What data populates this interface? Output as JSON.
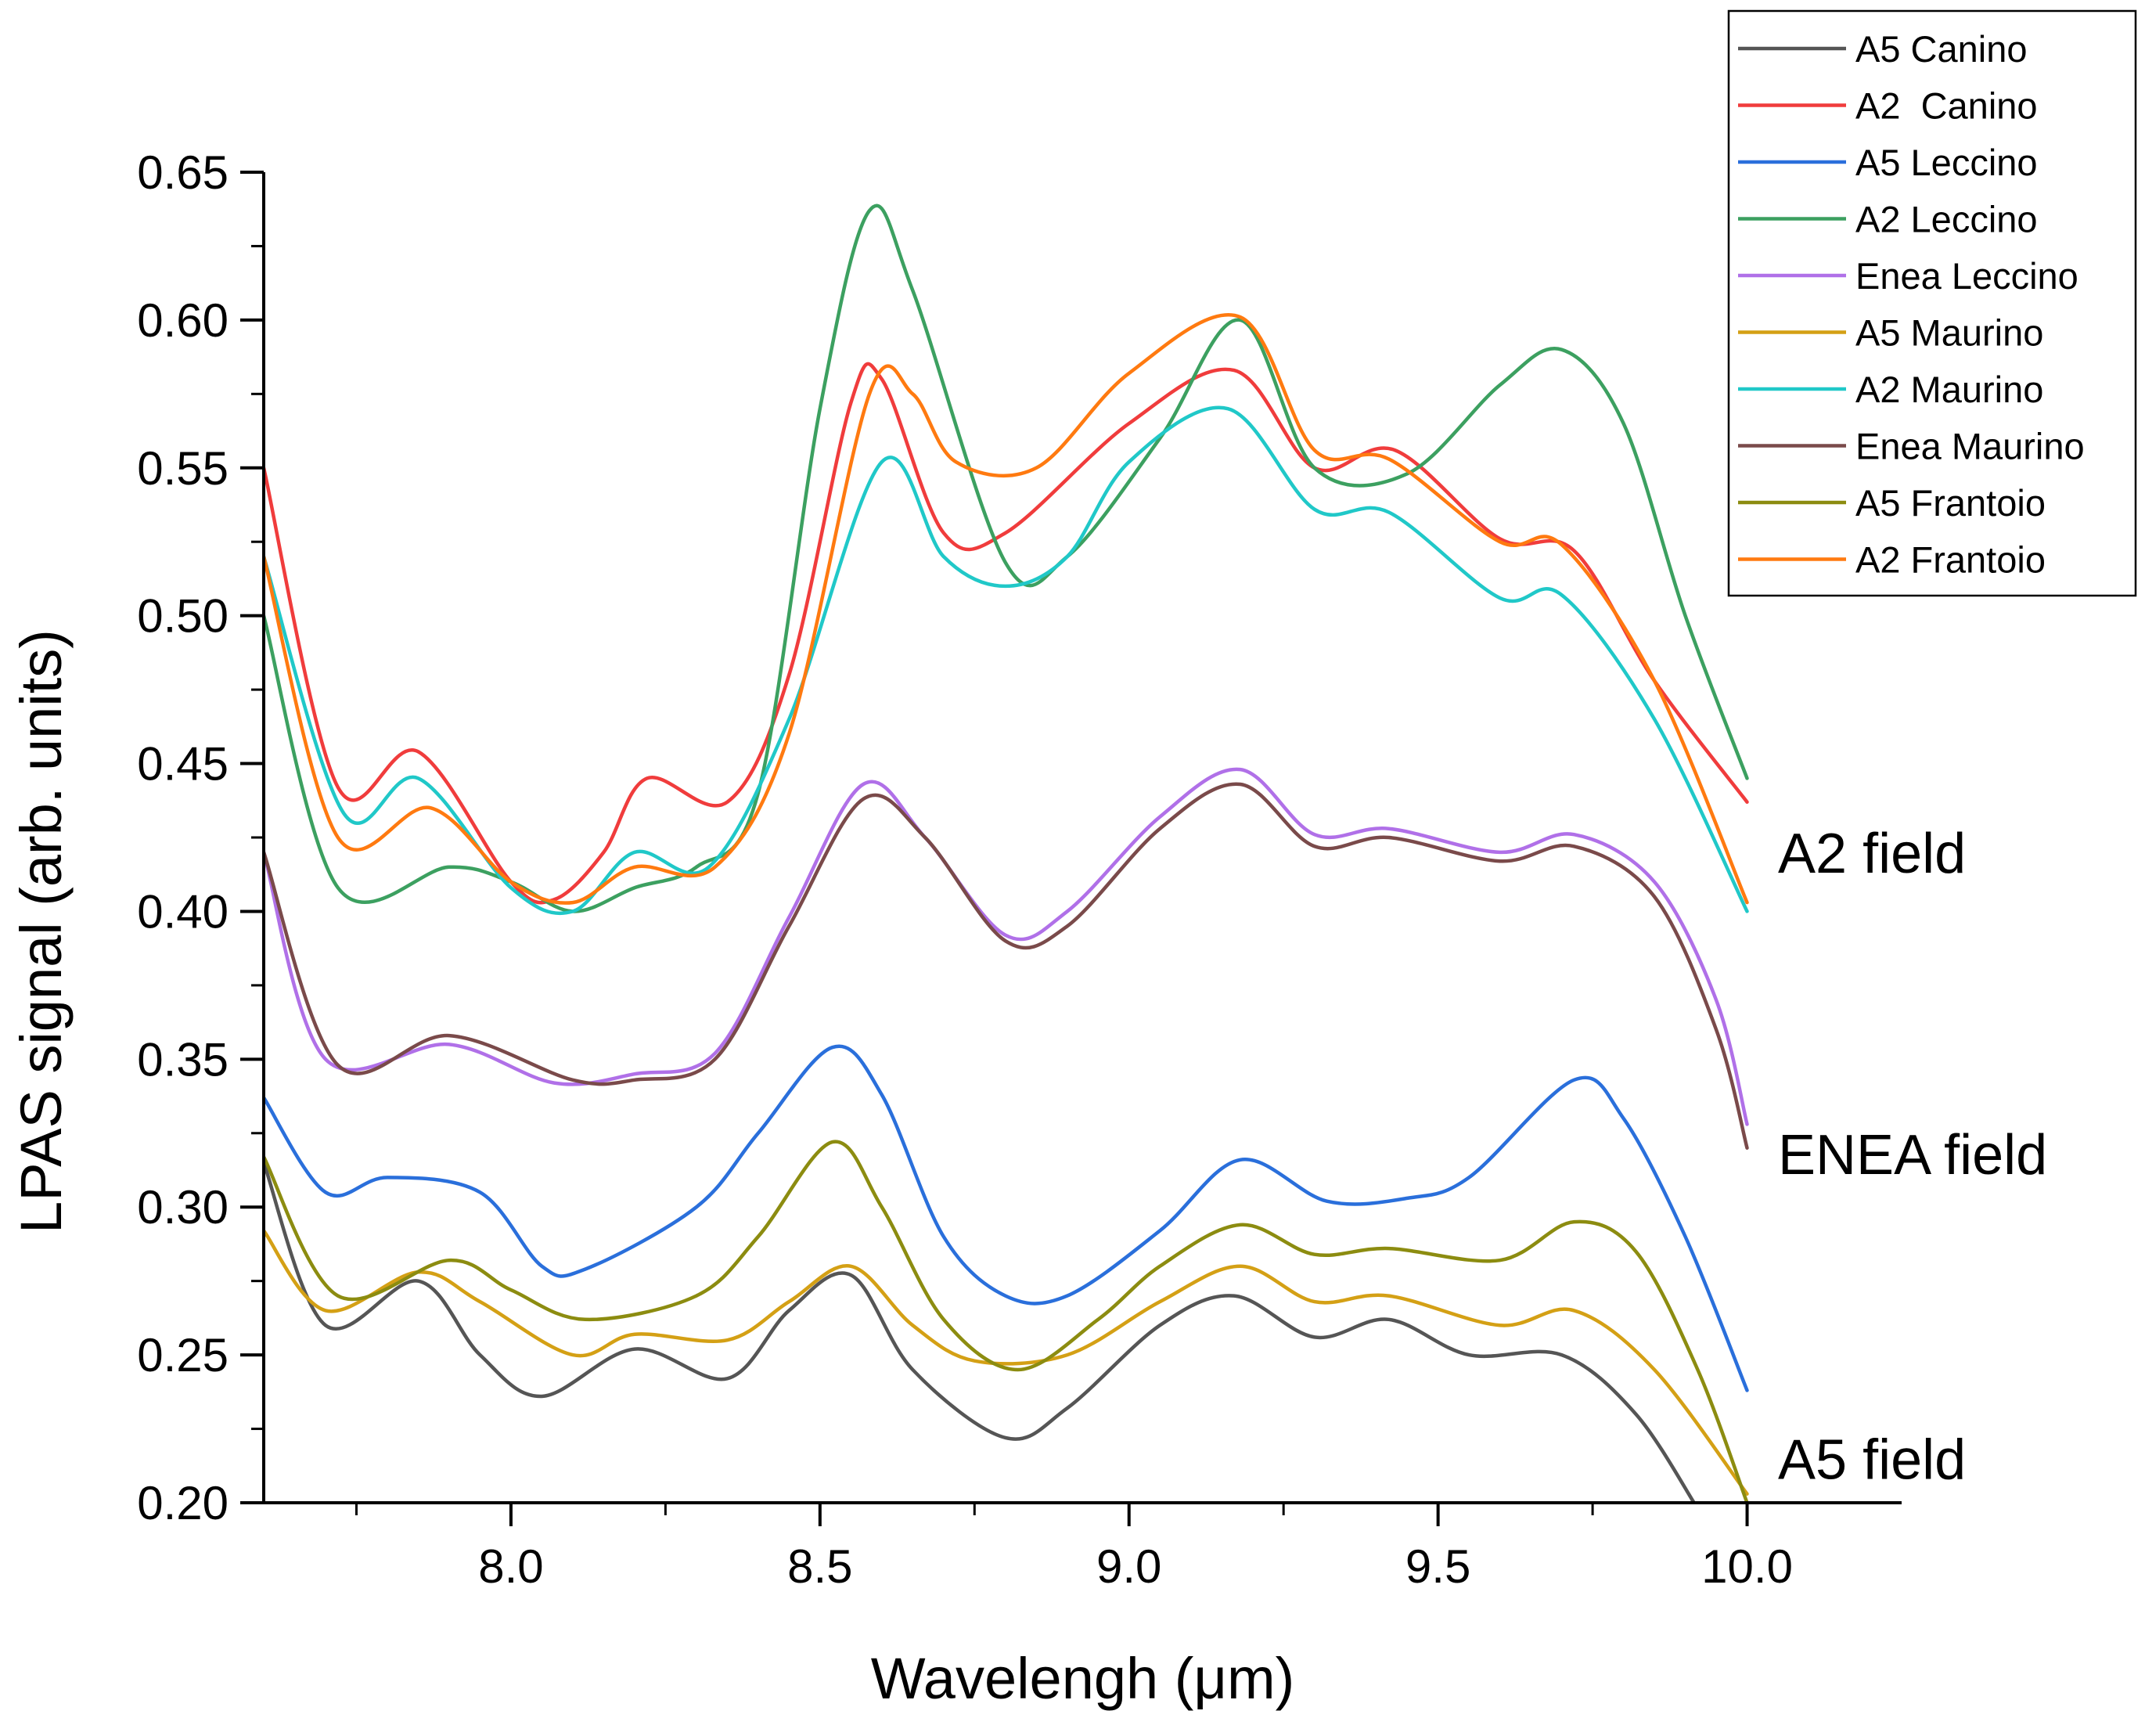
{
  "chart_data": {
    "type": "line",
    "title": "",
    "xlabel": "Wavelengh (μm)",
    "ylabel": "LPAS signal (arb. units)",
    "xlim": [
      7.6,
      10.25
    ],
    "ylim": [
      0.2,
      0.65
    ],
    "xticks": [
      "8.0",
      "8.5",
      "9.0",
      "9.5",
      "10.0"
    ],
    "yticks": [
      "0.20",
      "0.25",
      "0.30",
      "0.35",
      "0.40",
      "0.45",
      "0.50",
      "0.55",
      "0.60",
      "0.65"
    ],
    "grid": false,
    "legend_position": "top-right",
    "annotations": [
      {
        "text": "A2 field",
        "x": 10.05,
        "y": 0.42
      },
      {
        "text": "ENEA field",
        "x": 10.05,
        "y": 0.318
      },
      {
        "text": "A5 field",
        "x": 10.05,
        "y": 0.215
      }
    ],
    "series": [
      {
        "name": "A5 Canino",
        "color": "#555555",
        "points": [
          [
            7.6,
            0.315
          ],
          [
            7.7,
            0.26
          ],
          [
            7.85,
            0.275
          ],
          [
            7.95,
            0.25
          ],
          [
            8.05,
            0.236
          ],
          [
            8.2,
            0.252
          ],
          [
            8.35,
            0.242
          ],
          [
            8.45,
            0.265
          ],
          [
            8.55,
            0.277
          ],
          [
            8.65,
            0.245
          ],
          [
            8.8,
            0.222
          ],
          [
            8.9,
            0.232
          ],
          [
            9.05,
            0.26
          ],
          [
            9.17,
            0.27
          ],
          [
            9.3,
            0.256
          ],
          [
            9.42,
            0.262
          ],
          [
            9.55,
            0.25
          ],
          [
            9.7,
            0.25
          ],
          [
            9.82,
            0.23
          ],
          [
            9.92,
            0.198
          ]
        ]
      },
      {
        "name": "A2  Canino",
        "color": "#f03c3c",
        "points": [
          [
            7.6,
            0.55
          ],
          [
            7.72,
            0.442
          ],
          [
            7.85,
            0.454
          ],
          [
            8.0,
            0.41
          ],
          [
            8.07,
            0.404
          ],
          [
            8.15,
            0.42
          ],
          [
            8.22,
            0.445
          ],
          [
            8.35,
            0.437
          ],
          [
            8.45,
            0.48
          ],
          [
            8.55,
            0.572
          ],
          [
            8.6,
            0.58
          ],
          [
            8.7,
            0.528
          ],
          [
            8.8,
            0.528
          ],
          [
            9.0,
            0.565
          ],
          [
            9.17,
            0.583
          ],
          [
            9.3,
            0.55
          ],
          [
            9.43,
            0.556
          ],
          [
            9.6,
            0.526
          ],
          [
            9.72,
            0.522
          ],
          [
            9.85,
            0.478
          ],
          [
            10.0,
            0.437
          ]
        ]
      },
      {
        "name": "A5 Leccino",
        "color": "#2a6fdb",
        "points": [
          [
            7.6,
            0.337
          ],
          [
            7.7,
            0.305
          ],
          [
            7.8,
            0.31
          ],
          [
            7.95,
            0.305
          ],
          [
            8.05,
            0.28
          ],
          [
            8.12,
            0.279
          ],
          [
            8.3,
            0.3
          ],
          [
            8.4,
            0.325
          ],
          [
            8.52,
            0.354
          ],
          [
            8.6,
            0.338
          ],
          [
            8.7,
            0.29
          ],
          [
            8.8,
            0.27
          ],
          [
            8.9,
            0.27
          ],
          [
            9.05,
            0.292
          ],
          [
            9.18,
            0.316
          ],
          [
            9.32,
            0.302
          ],
          [
            9.45,
            0.303
          ],
          [
            9.55,
            0.31
          ],
          [
            9.72,
            0.343
          ],
          [
            9.8,
            0.33
          ],
          [
            9.9,
            0.29
          ],
          [
            10.0,
            0.238
          ]
        ]
      },
      {
        "name": "A2 Leccino",
        "color": "#3ca060",
        "points": [
          [
            7.6,
            0.5
          ],
          [
            7.72,
            0.408
          ],
          [
            7.9,
            0.415
          ],
          [
            8.0,
            0.41
          ],
          [
            8.1,
            0.4
          ],
          [
            8.2,
            0.408
          ],
          [
            8.3,
            0.415
          ],
          [
            8.4,
            0.44
          ],
          [
            8.5,
            0.57
          ],
          [
            8.58,
            0.637
          ],
          [
            8.65,
            0.61
          ],
          [
            8.8,
            0.518
          ],
          [
            8.9,
            0.52
          ],
          [
            9.05,
            0.56
          ],
          [
            9.18,
            0.6
          ],
          [
            9.3,
            0.55
          ],
          [
            9.45,
            0.548
          ],
          [
            9.6,
            0.578
          ],
          [
            9.7,
            0.59
          ],
          [
            9.8,
            0.565
          ],
          [
            9.9,
            0.5
          ],
          [
            10.0,
            0.445
          ]
        ]
      },
      {
        "name": "Enea Leccino",
        "color": "#b070e8",
        "points": [
          [
            7.6,
            0.42
          ],
          [
            7.7,
            0.35
          ],
          [
            7.9,
            0.355
          ],
          [
            8.07,
            0.342
          ],
          [
            8.2,
            0.345
          ],
          [
            8.33,
            0.352
          ],
          [
            8.45,
            0.398
          ],
          [
            8.57,
            0.443
          ],
          [
            8.67,
            0.425
          ],
          [
            8.8,
            0.392
          ],
          [
            8.9,
            0.4
          ],
          [
            9.05,
            0.432
          ],
          [
            9.18,
            0.448
          ],
          [
            9.3,
            0.426
          ],
          [
            9.42,
            0.428
          ],
          [
            9.6,
            0.42
          ],
          [
            9.72,
            0.426
          ],
          [
            9.85,
            0.41
          ],
          [
            9.95,
            0.37
          ],
          [
            10.0,
            0.328
          ]
        ]
      },
      {
        "name": "A5 Maurino",
        "color": "#d4a015",
        "points": [
          [
            7.6,
            0.292
          ],
          [
            7.7,
            0.265
          ],
          [
            7.85,
            0.278
          ],
          [
            7.95,
            0.268
          ],
          [
            8.1,
            0.25
          ],
          [
            8.2,
            0.257
          ],
          [
            8.35,
            0.255
          ],
          [
            8.45,
            0.268
          ],
          [
            8.55,
            0.28
          ],
          [
            8.65,
            0.26
          ],
          [
            8.75,
            0.248
          ],
          [
            8.9,
            0.25
          ],
          [
            9.05,
            0.268
          ],
          [
            9.18,
            0.28
          ],
          [
            9.3,
            0.268
          ],
          [
            9.42,
            0.27
          ],
          [
            9.6,
            0.26
          ],
          [
            9.72,
            0.265
          ],
          [
            9.85,
            0.245
          ],
          [
            10.0,
            0.203
          ]
        ]
      },
      {
        "name": "A2 Maurino",
        "color": "#20c8c8",
        "points": [
          [
            7.6,
            0.52
          ],
          [
            7.73,
            0.433
          ],
          [
            7.85,
            0.445
          ],
          [
            8.0,
            0.408
          ],
          [
            8.1,
            0.4
          ],
          [
            8.2,
            0.42
          ],
          [
            8.32,
            0.415
          ],
          [
            8.45,
            0.465
          ],
          [
            8.6,
            0.552
          ],
          [
            8.7,
            0.52
          ],
          [
            8.8,
            0.51
          ],
          [
            8.9,
            0.52
          ],
          [
            9.0,
            0.552
          ],
          [
            9.16,
            0.57
          ],
          [
            9.3,
            0.536
          ],
          [
            9.42,
            0.535
          ],
          [
            9.6,
            0.506
          ],
          [
            9.7,
            0.507
          ],
          [
            9.85,
            0.465
          ],
          [
            10.0,
            0.4
          ]
        ]
      },
      {
        "name": "Enea Maurino",
        "color": "#7a4a4a",
        "points": [
          [
            7.6,
            0.42
          ],
          [
            7.72,
            0.348
          ],
          [
            7.9,
            0.358
          ],
          [
            8.1,
            0.343
          ],
          [
            8.2,
            0.343
          ],
          [
            8.33,
            0.35
          ],
          [
            8.45,
            0.395
          ],
          [
            8.57,
            0.438
          ],
          [
            8.67,
            0.425
          ],
          [
            8.8,
            0.39
          ],
          [
            8.9,
            0.395
          ],
          [
            9.05,
            0.428
          ],
          [
            9.18,
            0.443
          ],
          [
            9.3,
            0.422
          ],
          [
            9.42,
            0.425
          ],
          [
            9.6,
            0.417
          ],
          [
            9.72,
            0.422
          ],
          [
            9.85,
            0.405
          ],
          [
            9.95,
            0.36
          ],
          [
            10.0,
            0.32
          ]
        ]
      },
      {
        "name": "A5 Frantoio",
        "color": "#8c8c10",
        "points": [
          [
            7.6,
            0.317
          ],
          [
            7.72,
            0.27
          ],
          [
            7.9,
            0.282
          ],
          [
            8.0,
            0.272
          ],
          [
            8.12,
            0.262
          ],
          [
            8.3,
            0.27
          ],
          [
            8.4,
            0.29
          ],
          [
            8.52,
            0.322
          ],
          [
            8.6,
            0.3
          ],
          [
            8.7,
            0.262
          ],
          [
            8.82,
            0.245
          ],
          [
            8.95,
            0.262
          ],
          [
            9.05,
            0.28
          ],
          [
            9.18,
            0.294
          ],
          [
            9.3,
            0.284
          ],
          [
            9.42,
            0.286
          ],
          [
            9.6,
            0.282
          ],
          [
            9.72,
            0.295
          ],
          [
            9.82,
            0.285
          ],
          [
            9.92,
            0.245
          ],
          [
            10.0,
            0.2
          ]
        ]
      },
      {
        "name": "A2 Frantoio",
        "color": "#ff7a10",
        "points": [
          [
            7.6,
            0.52
          ],
          [
            7.72,
            0.425
          ],
          [
            7.87,
            0.435
          ],
          [
            8.0,
            0.41
          ],
          [
            8.1,
            0.403
          ],
          [
            8.2,
            0.415
          ],
          [
            8.33,
            0.415
          ],
          [
            8.45,
            0.46
          ],
          [
            8.58,
            0.575
          ],
          [
            8.65,
            0.575
          ],
          [
            8.72,
            0.552
          ],
          [
            8.85,
            0.55
          ],
          [
            9.0,
            0.582
          ],
          [
            9.18,
            0.601
          ],
          [
            9.3,
            0.556
          ],
          [
            9.42,
            0.553
          ],
          [
            9.6,
            0.525
          ],
          [
            9.7,
            0.524
          ],
          [
            9.85,
            0.478
          ],
          [
            10.0,
            0.403
          ]
        ]
      }
    ]
  }
}
